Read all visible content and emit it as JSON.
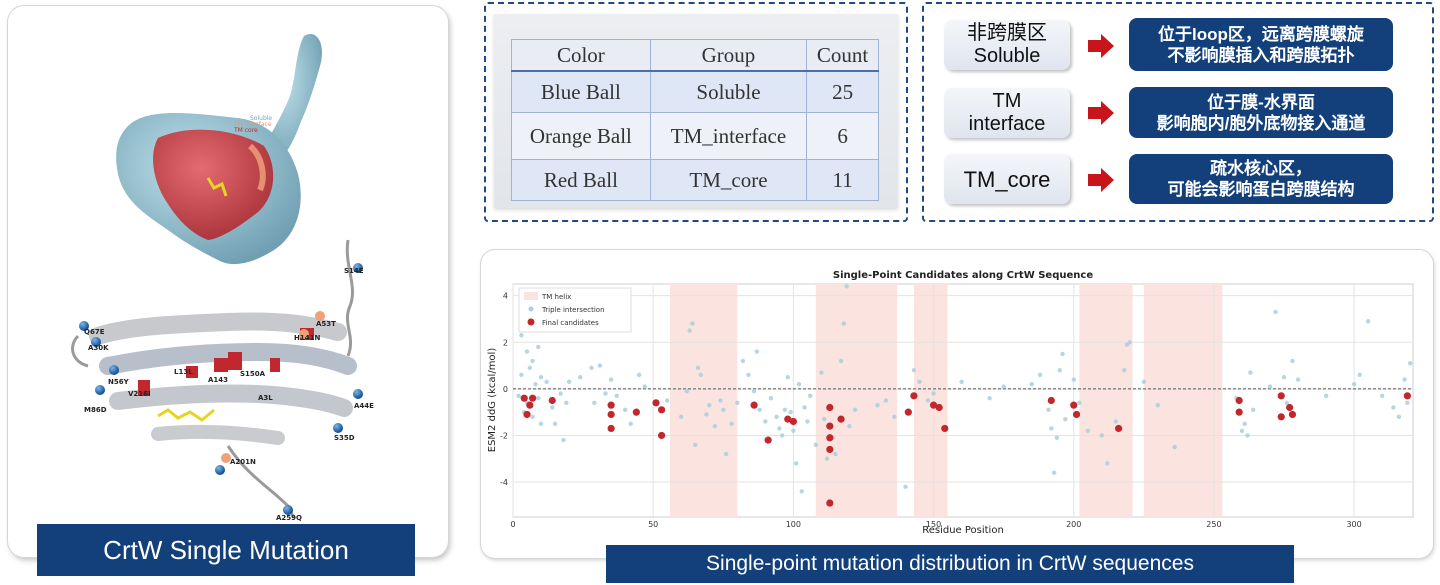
{
  "left_panel": {
    "caption": "CrtW Single Mutation",
    "surface_legend": [
      "Soluble",
      "TM interface",
      "TM core"
    ],
    "residue_labels": [
      "S14E",
      "A53T",
      "H141N",
      "V216I",
      "M86D",
      "A44E",
      "S35D",
      "A201N",
      "A259Q",
      "Q67E",
      "A30K",
      "N56Y",
      "L13L",
      "A143",
      "S150A",
      "A3L"
    ]
  },
  "group_table": {
    "headers": [
      "Color",
      "Group",
      "Count"
    ],
    "rows": [
      [
        "Blue Ball",
        "Soluble",
        "25"
      ],
      [
        "Orange Ball",
        "TM_interface",
        "6"
      ],
      [
        "Red Ball",
        "TM_core",
        "11"
      ]
    ]
  },
  "region_legend": [
    {
      "label_lines": [
        "非跨膜区",
        "Soluble"
      ],
      "desc_lines": [
        "位于loop区，远离跨膜螺旋",
        "不影响膜插入和跨膜拓扑"
      ]
    },
    {
      "label_lines": [
        "TM",
        "interface"
      ],
      "desc_lines": [
        "位于膜-水界面",
        "影响胞内/胞外底物接入通道"
      ]
    },
    {
      "label_lines": [
        "TM_core"
      ],
      "desc_lines": [
        "疏水核心区，",
        "可能会影响蛋白跨膜结构"
      ]
    }
  ],
  "chart_caption": "Single-point mutation distribution in CrtW sequences",
  "colors": {
    "navy": "#13407a",
    "arrow": "#c8141b",
    "helix_band": "#fbe3df",
    "triple": "#a9cfdc",
    "final": "#c0282d"
  },
  "chart_data": {
    "type": "scatter",
    "title": "Single-Point Candidates along CrtW Sequence",
    "xlabel": "Residue Position",
    "ylabel": "ESM2 ddG (kcal/mol)",
    "xlim": [
      0,
      321
    ],
    "ylim": [
      -5.5,
      4.5
    ],
    "xticks": [
      0,
      50,
      100,
      150,
      200,
      250,
      300
    ],
    "yticks": [
      4,
      2,
      0,
      -2,
      -4
    ],
    "grid": true,
    "legend_position": "top-left",
    "legend": [
      "TM helix",
      "Triple intersection",
      "Final candidates"
    ],
    "tm_helix_ranges": [
      [
        56,
        80
      ],
      [
        108,
        137
      ],
      [
        143,
        155
      ],
      [
        202,
        221
      ],
      [
        225,
        253
      ]
    ],
    "series": [
      {
        "name": "Triple intersection",
        "points": [
          [
            2,
            -0.3
          ],
          [
            3,
            0.6
          ],
          [
            3,
            2.3
          ],
          [
            4,
            -1.0
          ],
          [
            5,
            1.6
          ],
          [
            5,
            -0.6
          ],
          [
            6,
            0.9
          ],
          [
            6,
            3.0
          ],
          [
            7,
            -1.2
          ],
          [
            7,
            1.2
          ],
          [
            8,
            0.2
          ],
          [
            8,
            2.8
          ],
          [
            9,
            -0.4
          ],
          [
            9,
            1.8
          ],
          [
            10,
            0.5
          ],
          [
            10,
            -1.5
          ],
          [
            12,
            0.3
          ],
          [
            14,
            -0.8
          ],
          [
            15,
            -1.5
          ],
          [
            17,
            -0.2
          ],
          [
            18,
            -2.2
          ],
          [
            19,
            -0.6
          ],
          [
            20,
            0.3
          ],
          [
            24,
            0.5
          ],
          [
            28,
            0.9
          ],
          [
            29,
            -0.6
          ],
          [
            31,
            1.0
          ],
          [
            33,
            -0.2
          ],
          [
            35,
            0.4
          ],
          [
            37,
            -0.3
          ],
          [
            40,
            -0.9
          ],
          [
            42,
            -1.5
          ],
          [
            45,
            0.6
          ],
          [
            47,
            0.1
          ],
          [
            55,
            -0.5
          ],
          [
            60,
            -1.2
          ],
          [
            62,
            -0.1
          ],
          [
            63,
            2.5
          ],
          [
            64,
            2.8
          ],
          [
            65,
            -2.4
          ],
          [
            66,
            0.9
          ],
          [
            67,
            0.6
          ],
          [
            69,
            -1.1
          ],
          [
            70,
            -0.7
          ],
          [
            72,
            -1.6
          ],
          [
            74,
            -0.5
          ],
          [
            75,
            -0.9
          ],
          [
            76,
            -2.8
          ],
          [
            78,
            -1.5
          ],
          [
            80,
            -0.6
          ],
          [
            82,
            1.2
          ],
          [
            84,
            0.6
          ],
          [
            86,
            -0.1
          ],
          [
            87,
            1.6
          ],
          [
            88,
            -0.9
          ],
          [
            90,
            -1.4
          ],
          [
            92,
            -0.4
          ],
          [
            94,
            -1.2
          ],
          [
            95,
            -1.7
          ],
          [
            96,
            -2.0
          ],
          [
            97,
            -0.9
          ],
          [
            98,
            0.5
          ],
          [
            99,
            -1.0
          ],
          [
            100,
            -1.8
          ],
          [
            101,
            -3.2
          ],
          [
            102,
            0.2
          ],
          [
            103,
            -4.4
          ],
          [
            104,
            -0.8
          ],
          [
            105,
            -1.4
          ],
          [
            106,
            -0.3
          ],
          [
            108,
            -2.4
          ],
          [
            110,
            0.7
          ],
          [
            111,
            -1.3
          ],
          [
            112,
            -3.0
          ],
          [
            114,
            -2.1
          ],
          [
            115,
            -2.8
          ],
          [
            117,
            1.2
          ],
          [
            118,
            2.8
          ],
          [
            119,
            4.4
          ],
          [
            120,
            -1.6
          ],
          [
            122,
            -0.9
          ],
          [
            130,
            -0.7
          ],
          [
            133,
            -0.5
          ],
          [
            136,
            -1.2
          ],
          [
            140,
            -4.2
          ],
          [
            143,
            0.8
          ],
          [
            145,
            0.3
          ],
          [
            148,
            -0.5
          ],
          [
            150,
            -0.2
          ],
          [
            152,
            -0.8
          ],
          [
            160,
            0.3
          ],
          [
            170,
            -0.4
          ],
          [
            175,
            0.1
          ],
          [
            185,
            0.2
          ],
          [
            188,
            0.6
          ],
          [
            191,
            -0.9
          ],
          [
            192,
            -1.7
          ],
          [
            193,
            -3.6
          ],
          [
            194,
            -2.1
          ],
          [
            195,
            0.8
          ],
          [
            196,
            1.5
          ],
          [
            197,
            -1.3
          ],
          [
            200,
            0.4
          ],
          [
            202,
            -0.6
          ],
          [
            205,
            -1.8
          ],
          [
            210,
            -2.0
          ],
          [
            212,
            -3.2
          ],
          [
            215,
            -1.4
          ],
          [
            218,
            0.8
          ],
          [
            219,
            1.9
          ],
          [
            220,
            2.0
          ],
          [
            225,
            0.3
          ],
          [
            230,
            -0.7
          ],
          [
            236,
            -2.5
          ],
          [
            258,
            -0.4
          ],
          [
            260,
            -1.8
          ],
          [
            261,
            -1.5
          ],
          [
            262,
            -2.0
          ],
          [
            263,
            0.7
          ],
          [
            264,
            -0.9
          ],
          [
            270,
            0.1
          ],
          [
            272,
            3.3
          ],
          [
            275,
            0.5
          ],
          [
            276,
            -0.6
          ],
          [
            278,
            1.2
          ],
          [
            280,
            0.4
          ],
          [
            290,
            -0.3
          ],
          [
            300,
            0.2
          ],
          [
            302,
            0.6
          ],
          [
            305,
            2.9
          ],
          [
            310,
            -0.3
          ],
          [
            314,
            -0.8
          ],
          [
            316,
            -1.2
          ],
          [
            318,
            0.4
          ],
          [
            319,
            -0.6
          ],
          [
            320,
            1.1
          ]
        ]
      },
      {
        "name": "Final candidates",
        "points": [
          [
            4,
            -0.4
          ],
          [
            5,
            -1.1
          ],
          [
            6,
            -0.7
          ],
          [
            7,
            -0.4
          ],
          [
            14,
            -0.5
          ],
          [
            35,
            -0.7
          ],
          [
            35,
            -1.1
          ],
          [
            35,
            -1.7
          ],
          [
            44,
            -1.0
          ],
          [
            51,
            -0.6
          ],
          [
            53,
            -0.9
          ],
          [
            53,
            -2.0
          ],
          [
            86,
            -0.7
          ],
          [
            91,
            -2.2
          ],
          [
            98,
            -1.3
          ],
          [
            100,
            -1.4
          ],
          [
            113,
            -0.8
          ],
          [
            113,
            -1.6
          ],
          [
            113,
            -2.1
          ],
          [
            113,
            -2.6
          ],
          [
            113,
            -4.9
          ],
          [
            117,
            -1.3
          ],
          [
            141,
            -1.0
          ],
          [
            143,
            -0.3
          ],
          [
            150,
            -0.7
          ],
          [
            152,
            -0.8
          ],
          [
            154,
            -1.7
          ],
          [
            192,
            -0.5
          ],
          [
            200,
            -0.7
          ],
          [
            201,
            -1.1
          ],
          [
            216,
            -1.7
          ],
          [
            259,
            -0.5
          ],
          [
            259,
            -1.0
          ],
          [
            274,
            -0.3
          ],
          [
            274,
            -1.2
          ],
          [
            277,
            -0.8
          ],
          [
            278,
            -1.1
          ],
          [
            319,
            -0.3
          ]
        ]
      }
    ]
  }
}
